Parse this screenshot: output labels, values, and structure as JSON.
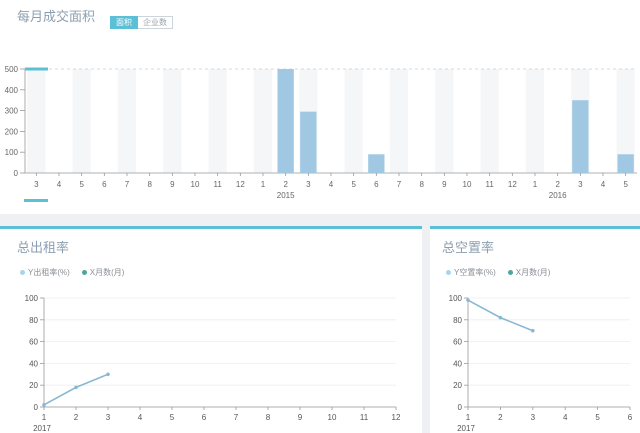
{
  "monthly": {
    "title": "每月成交面积",
    "toggle": {
      "area_label": "面积",
      "count_label": "企业数"
    }
  },
  "rent_rate": {
    "title": "总出租率",
    "legend": {
      "y_label": "Y出租率(%)",
      "x_label": "X月数(月)"
    }
  },
  "vacancy_rate": {
    "title": "总空置率",
    "legend": {
      "y_label": "Y空置率(%)",
      "x_label": "X月数(月)"
    }
  },
  "colors": {
    "bar": "#a0c8e2",
    "line": "#8ab8d4",
    "accent": "#5bc0d6",
    "legend_y": "#a9d4ec",
    "legend_x": "#4aa7a0"
  },
  "chart_data": [
    {
      "type": "bar",
      "categories": [
        "3",
        "4",
        "5",
        "6",
        "7",
        "8",
        "9",
        "10",
        "11",
        "12",
        "1",
        "2",
        "3",
        "4",
        "5",
        "6",
        "7",
        "8",
        "9",
        "10",
        "11",
        "12",
        "1",
        "2",
        "3",
        "4",
        "5"
      ],
      "years": [
        {
          "label": "2015",
          "index": 11
        },
        {
          "label": "2016",
          "index": 23
        }
      ],
      "values": [
        0,
        0,
        0,
        0,
        0,
        0,
        0,
        0,
        0,
        0,
        0,
        500,
        295,
        0,
        0,
        90,
        0,
        0,
        0,
        0,
        0,
        0,
        0,
        0,
        350,
        0,
        90
      ],
      "yticks": [
        0,
        100,
        200,
        300,
        400,
        500
      ],
      "ylim": [
        0,
        500
      ],
      "grid": true
    },
    {
      "type": "line",
      "x": [
        1,
        2,
        3
      ],
      "values": [
        2,
        18,
        30
      ],
      "xticks": [
        1,
        2,
        3,
        4,
        5,
        6,
        7,
        8,
        9,
        10,
        11,
        12
      ],
      "yticks": [
        0,
        20,
        40,
        60,
        80,
        100
      ],
      "ylim": [
        0,
        100
      ],
      "xlim": [
        1,
        12
      ],
      "year_label": "2017",
      "grid": true
    },
    {
      "type": "line",
      "x": [
        1,
        2,
        3
      ],
      "values": [
        98,
        82,
        70
      ],
      "xticks": [
        1,
        2,
        3,
        4,
        5,
        6
      ],
      "yticks": [
        0,
        20,
        40,
        60,
        80,
        100
      ],
      "ylim": [
        0,
        100
      ],
      "xlim": [
        1,
        6
      ],
      "year_label": "2017",
      "grid": true
    }
  ]
}
